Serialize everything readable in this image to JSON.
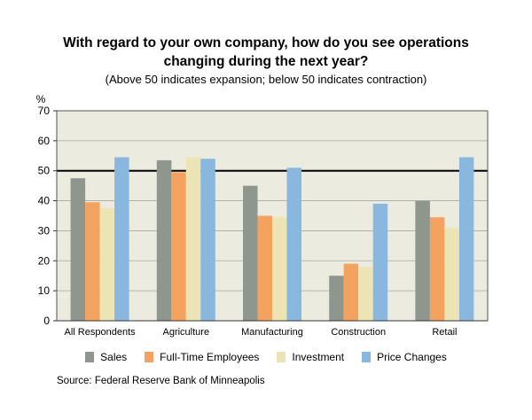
{
  "title": {
    "line1": "With regard to your own company, how do you see operations",
    "line2": "changing during the next year?",
    "subtitle": "(Above 50 indicates expansion; below 50 indicates contraction)"
  },
  "source": "Source: Federal Reserve Bank of Minneapolis",
  "colors": {
    "plot_background": "#ebebdf",
    "reference_line": "#000000",
    "gridline": "#a9a9a0"
  },
  "chart_data": {
    "type": "bar",
    "title": "With regard to your own company, how do you see operations changing during the next year?",
    "subtitle": "(Above 50 indicates expansion; below 50 indicates contraction)",
    "ylabel": "%",
    "xlabel": "",
    "ylim": [
      0,
      70
    ],
    "yticks": [
      0,
      10,
      20,
      30,
      40,
      50,
      60,
      70
    ],
    "grid": true,
    "reference_line": 50,
    "legend_position": "bottom",
    "categories": [
      "All Respondents",
      "Agriculture",
      "Manufacturing",
      "Construction",
      "Retail"
    ],
    "series": [
      {
        "name": "Sales",
        "color": "#8f968e",
        "values": [
          47.5,
          53.5,
          45,
          15,
          40
        ]
      },
      {
        "name": "Full-Time Employees",
        "color": "#f4a25f",
        "values": [
          39.5,
          49.5,
          35,
          19,
          34.5
        ]
      },
      {
        "name": "Investment",
        "color": "#ede4b5",
        "values": [
          37.5,
          54.5,
          34.5,
          18,
          31
        ]
      },
      {
        "name": "Price Changes",
        "color": "#8ab7dd",
        "values": [
          54.5,
          54,
          51,
          39,
          54.5
        ]
      }
    ]
  }
}
